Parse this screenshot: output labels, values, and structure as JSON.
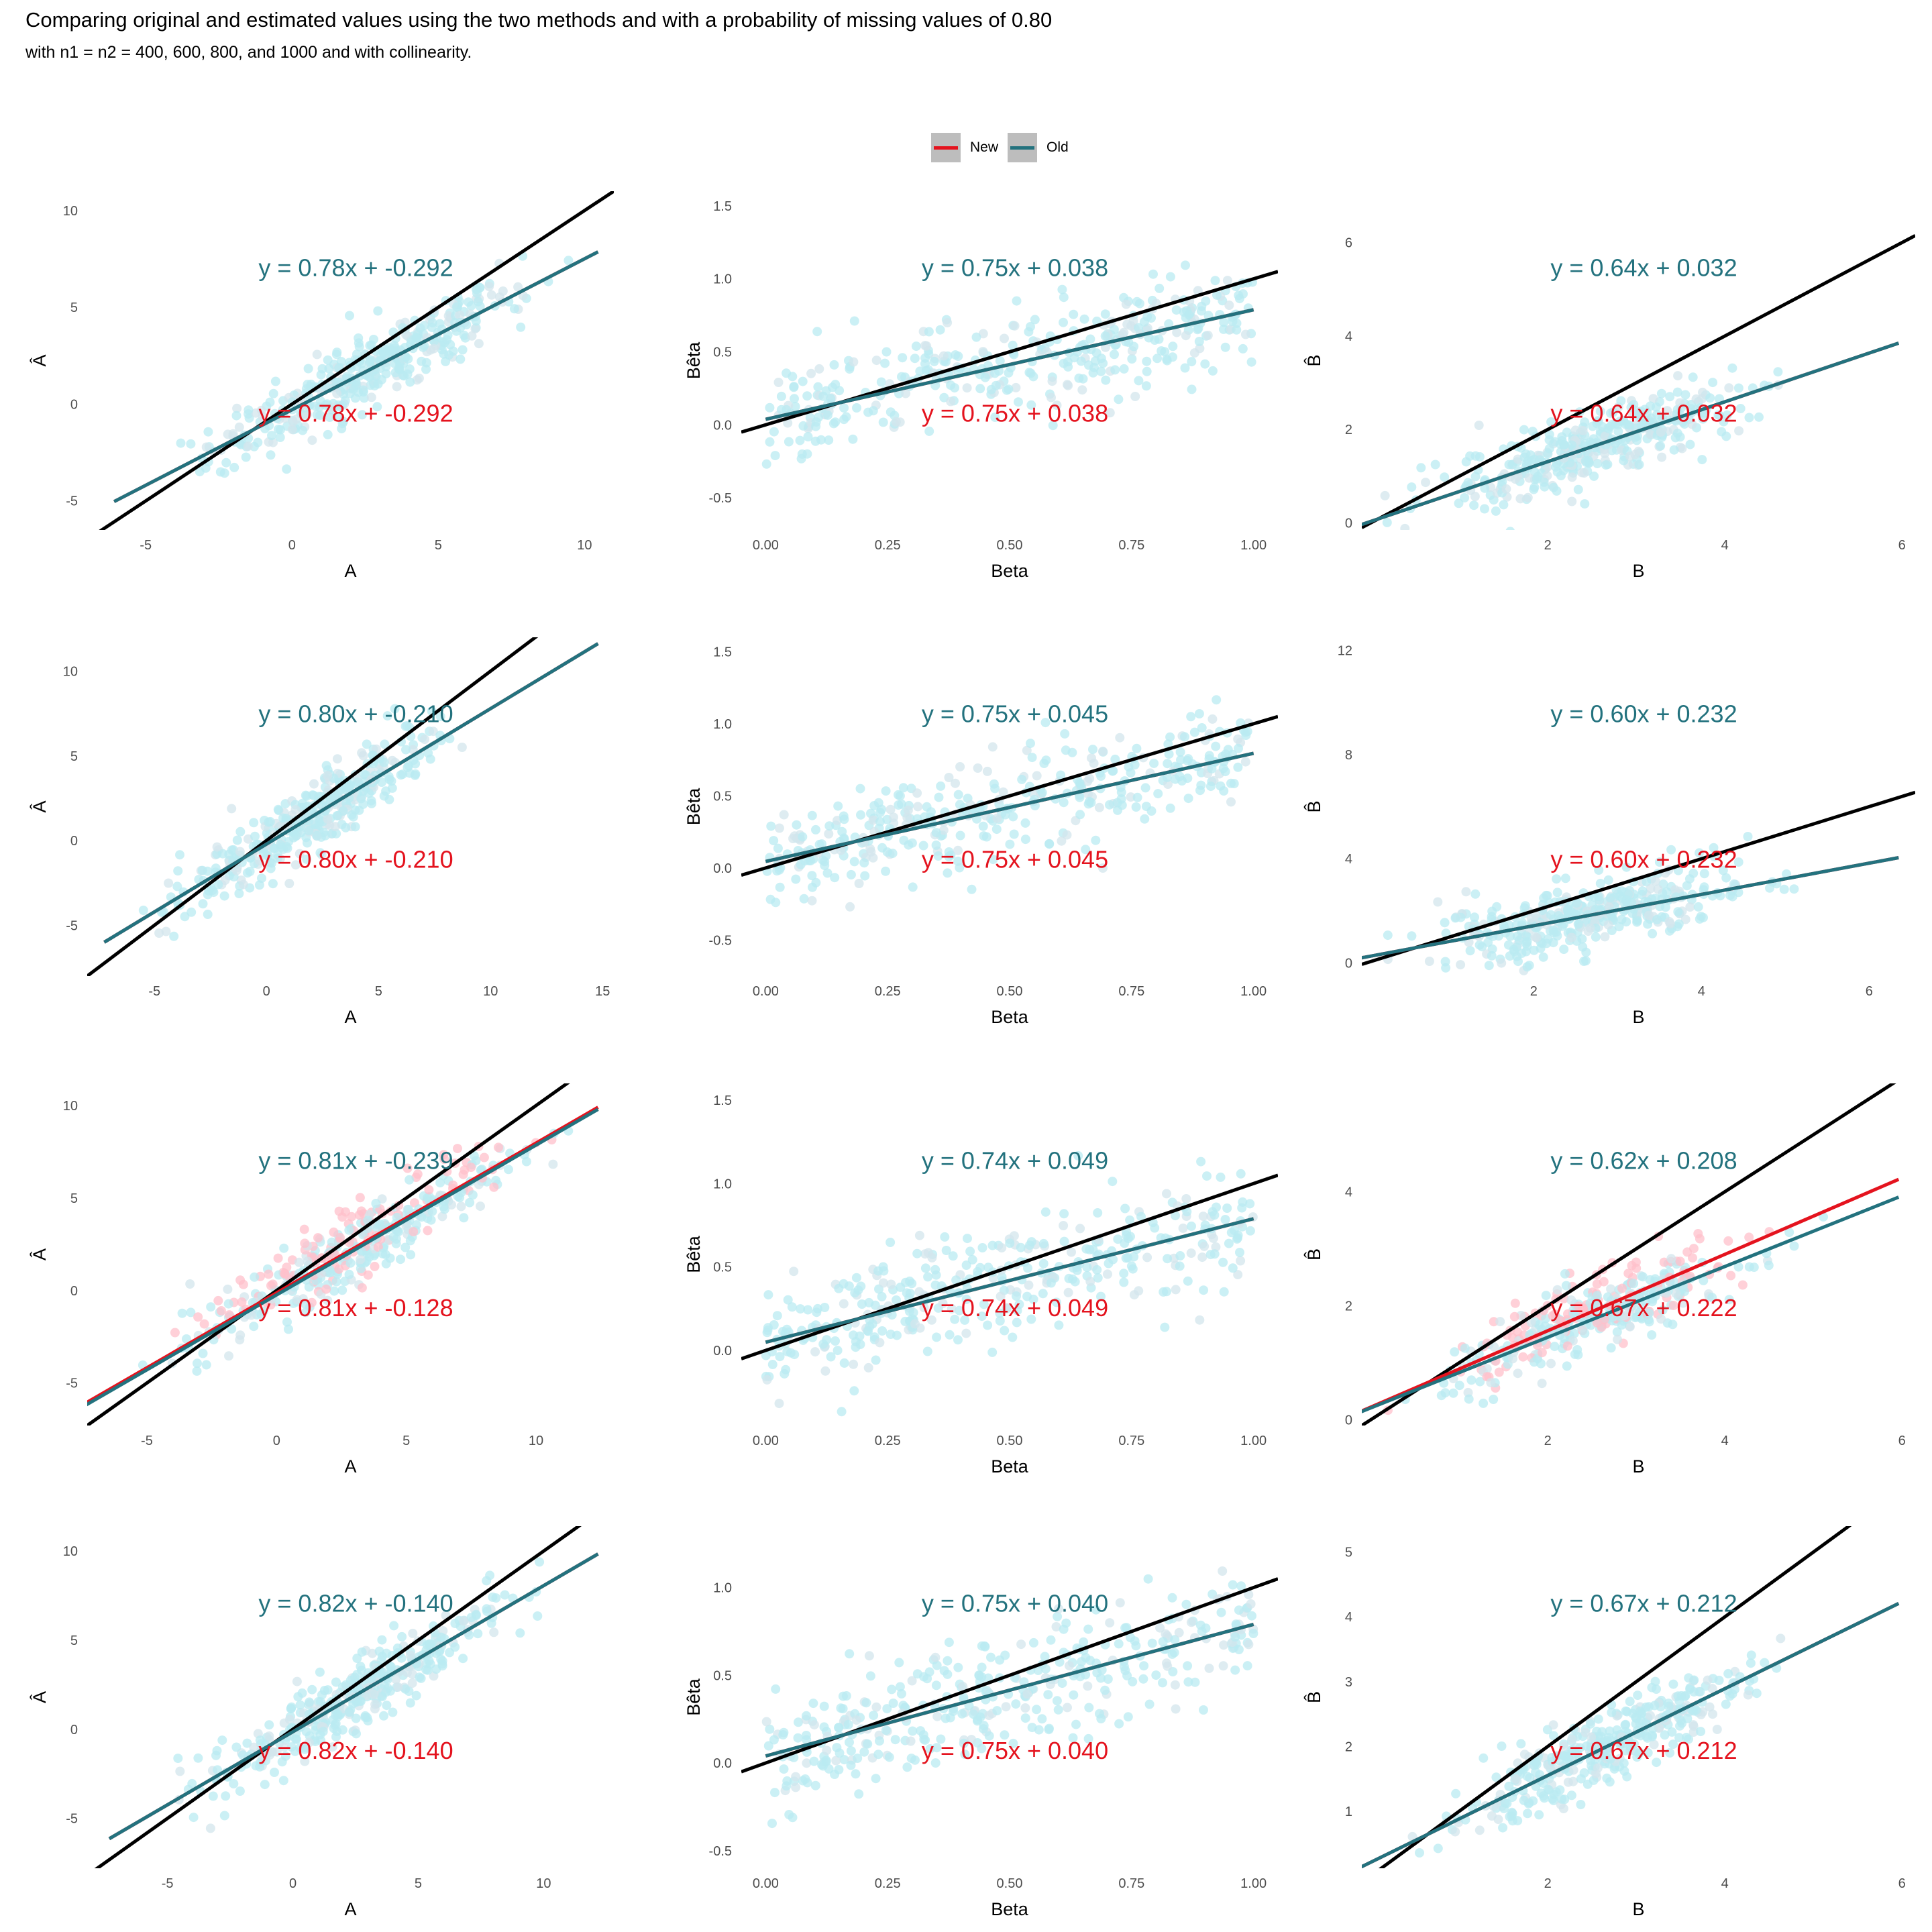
{
  "title": "Comparing original and estimated values using the two methods and with a probability of missing values of 0.80",
  "subtitle": "with n1 = n2 = 400, 600, 800, and 1000 and with collinearity.",
  "colors": {
    "new": "#e4131e",
    "old": "#23727e",
    "points_old": "#b9ebf2",
    "points_new": "#ffc0cb",
    "identity": "#000000"
  },
  "legend": [
    {
      "label": "New",
      "color": "#e4131e"
    },
    {
      "label": "Old",
      "color": "#23727e"
    }
  ],
  "chart_data": [
    {
      "type": "scatter",
      "xlabel": "A",
      "ylabel": "Â",
      "xlim": [
        -7,
        11
      ],
      "ylim": [
        -6.5,
        11
      ],
      "xticks": [
        "-5",
        "0",
        "5",
        "10"
      ],
      "yticks": [
        "-5",
        "0",
        "5",
        "10"
      ],
      "old_fit": {
        "slope": 0.78,
        "intercept": -0.292,
        "label": "y = 0.78x + -0.292"
      },
      "new_fit": {
        "slope": 0.78,
        "intercept": -0.292,
        "label": "y = 0.78x + -0.292"
      },
      "points_x_range": [
        -4,
        9
      ]
    },
    {
      "type": "scatter",
      "xlabel": "Beta",
      "ylabel": "Bêta",
      "xlim": [
        -0.05,
        1.05
      ],
      "ylim": [
        -0.72,
        1.6
      ],
      "xticks": [
        "0.00",
        "0.25",
        "0.50",
        "0.75",
        "1.00"
      ],
      "yticks": [
        "-0.5",
        "0.0",
        "0.5",
        "1.0",
        "1.5"
      ],
      "old_fit": {
        "slope": 0.75,
        "intercept": 0.038,
        "label": "y = 0.75x + 0.038"
      },
      "new_fit": {
        "slope": 0.75,
        "intercept": 0.038,
        "label": "y = 0.75x + 0.038"
      },
      "points_x_range": [
        0,
        1
      ]
    },
    {
      "type": "scatter",
      "xlabel": "B",
      "ylabel": "B̂",
      "xlim": [
        -0.1,
        6.15
      ],
      "ylim": [
        -0.15,
        7.1
      ],
      "xticks": [
        "2",
        "4",
        "6"
      ],
      "yticks": [
        "0",
        "2",
        "4",
        "6"
      ],
      "old_fit": {
        "slope": 0.64,
        "intercept": 0.032,
        "label": "y = 0.64x + 0.032"
      },
      "new_fit": {
        "slope": 0.64,
        "intercept": 0.032,
        "label": "y = 0.64x + 0.032"
      },
      "points_x_range": [
        0.4,
        4.7
      ]
    },
    {
      "type": "scatter",
      "xlabel": "A",
      "ylabel": "Â",
      "xlim": [
        -8,
        15.5
      ],
      "ylim": [
        -8,
        12
      ],
      "xticks": [
        "-5",
        "0",
        "5",
        "10",
        "15"
      ],
      "yticks": [
        "-5",
        "0",
        "5",
        "10"
      ],
      "old_fit": {
        "slope": 0.8,
        "intercept": -0.21,
        "label": "y = 0.80x + -0.210"
      },
      "new_fit": {
        "slope": 0.8,
        "intercept": -0.21,
        "label": "y = 0.80x + -0.210"
      },
      "points_x_range": [
        -5,
        9
      ]
    },
    {
      "type": "scatter",
      "xlabel": "Beta",
      "ylabel": "Bêta",
      "xlim": [
        -0.05,
        1.05
      ],
      "ylim": [
        -0.75,
        1.6
      ],
      "xticks": [
        "0.00",
        "0.25",
        "0.50",
        "0.75",
        "1.00"
      ],
      "yticks": [
        "-0.5",
        "0.0",
        "0.5",
        "1.0",
        "1.5"
      ],
      "old_fit": {
        "slope": 0.75,
        "intercept": 0.045,
        "label": "y = 0.75x + 0.045"
      },
      "new_fit": {
        "slope": 0.75,
        "intercept": 0.045,
        "label": "y = 0.75x + 0.045"
      },
      "points_x_range": [
        0,
        1
      ]
    },
    {
      "type": "scatter",
      "xlabel": "B",
      "ylabel": "B̂",
      "xlim": [
        -0.05,
        6.55
      ],
      "ylim": [
        -0.5,
        12.5
      ],
      "xticks": [
        "2",
        "4",
        "6"
      ],
      "yticks": [
        "0",
        "4",
        "8",
        "12"
      ],
      "old_fit": {
        "slope": 0.6,
        "intercept": 0.232,
        "label": "y = 0.60x + 0.232"
      },
      "new_fit": {
        "slope": 0.6,
        "intercept": 0.232,
        "label": "y = 0.60x + 0.232"
      },
      "points_x_range": [
        0.4,
        5
      ]
    },
    {
      "type": "scatter",
      "xlabel": "A",
      "ylabel": "Â",
      "xlim": [
        -7.3,
        13
      ],
      "ylim": [
        -7.3,
        11.2
      ],
      "xticks": [
        "-5",
        "0",
        "5",
        "10"
      ],
      "yticks": [
        "-5",
        "0",
        "5",
        "10"
      ],
      "old_fit": {
        "slope": 0.81,
        "intercept": -0.239,
        "label": "y = 0.81x + -0.239"
      },
      "new_fit": {
        "slope": 0.81,
        "intercept": -0.128,
        "label": "y = 0.81x + -0.128"
      },
      "points_x_range": [
        -5,
        11
      ]
    },
    {
      "type": "scatter",
      "xlabel": "Beta",
      "ylabel": "Bêta",
      "xlim": [
        -0.05,
        1.05
      ],
      "ylim": [
        -0.45,
        1.6
      ],
      "xticks": [
        "0.00",
        "0.25",
        "0.50",
        "0.75",
        "1.00"
      ],
      "yticks": [
        "0.0",
        "0.5",
        "1.0",
        "1.5"
      ],
      "old_fit": {
        "slope": 0.74,
        "intercept": 0.049,
        "label": "y = 0.74x + 0.049"
      },
      "new_fit": {
        "slope": 0.74,
        "intercept": 0.049,
        "label": "y = 0.74x + 0.049"
      },
      "points_x_range": [
        0,
        1
      ]
    },
    {
      "type": "scatter",
      "xlabel": "B",
      "ylabel": "B̂",
      "xlim": [
        -0.1,
        6.15
      ],
      "ylim": [
        -0.1,
        5.9
      ],
      "xticks": [
        "2",
        "4",
        "6"
      ],
      "yticks": [
        "0",
        "2",
        "4"
      ],
      "old_fit": {
        "slope": 0.62,
        "intercept": 0.208,
        "label": "y = 0.62x + 0.208"
      },
      "new_fit": {
        "slope": 0.67,
        "intercept": 0.222,
        "label": "y = 0.67x + 0.222"
      },
      "points_x_range": [
        0.4,
        4.7
      ]
    },
    {
      "type": "scatter",
      "xlabel": "A",
      "ylabel": "Â",
      "xlim": [
        -8.2,
        12.8
      ],
      "ylim": [
        -7.8,
        11.4
      ],
      "xticks": [
        "-5",
        "0",
        "5",
        "10"
      ],
      "yticks": [
        "-5",
        "0",
        "5",
        "10"
      ],
      "old_fit": {
        "slope": 0.82,
        "intercept": -0.14,
        "label": "y = 0.82x + -0.140"
      },
      "new_fit": {
        "slope": 0.82,
        "intercept": -0.14,
        "label": "y = 0.82x + -0.140"
      },
      "points_x_range": [
        -5,
        9.5
      ]
    },
    {
      "type": "scatter",
      "xlabel": "Beta",
      "ylabel": "Bêta",
      "xlim": [
        -0.05,
        1.05
      ],
      "ylim": [
        -0.6,
        1.35
      ],
      "xticks": [
        "0.00",
        "0.25",
        "0.50",
        "0.75",
        "1.00"
      ],
      "yticks": [
        "-0.5",
        "0.0",
        "0.5",
        "1.0"
      ],
      "old_fit": {
        "slope": 0.75,
        "intercept": 0.04,
        "label": "y = 0.75x + 0.040"
      },
      "new_fit": {
        "slope": 0.75,
        "intercept": 0.04,
        "label": "y = 0.75x + 0.040"
      },
      "points_x_range": [
        0,
        1
      ]
    },
    {
      "type": "scatter",
      "xlabel": "B",
      "ylabel": "B̂",
      "xlim": [
        -0.1,
        6.15
      ],
      "ylim": [
        0.12,
        5.4
      ],
      "xticks": [
        "2",
        "4",
        "6"
      ],
      "yticks": [
        "1",
        "2",
        "3",
        "4",
        "5"
      ],
      "old_fit": {
        "slope": 0.67,
        "intercept": 0.212,
        "label": "y = 0.67x + 0.212"
      },
      "new_fit": {
        "slope": 0.67,
        "intercept": 0.212,
        "label": "y = 0.67x + 0.212"
      },
      "points_x_range": [
        0.4,
        4.7
      ]
    }
  ]
}
